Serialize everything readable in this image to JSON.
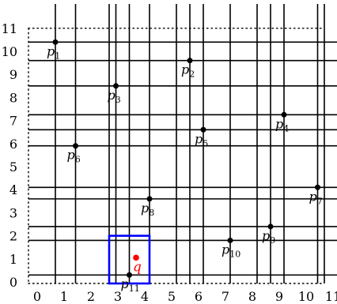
{
  "chart_data": {
    "type": "scatter",
    "xlim": [
      0,
      11
    ],
    "ylim": [
      0,
      11
    ],
    "x_ticks": [
      "0",
      "1",
      "2",
      "3",
      "4",
      "5",
      "6",
      "7",
      "8",
      "9",
      "10",
      "11"
    ],
    "y_ticks": [
      "0",
      "1",
      "2",
      "3",
      "4",
      "5",
      "6",
      "7",
      "8",
      "9",
      "10",
      "11"
    ],
    "points": [
      {
        "label": "p",
        "sub": "1",
        "x": 1.0,
        "y": 10.4
      },
      {
        "label": "p",
        "sub": "2",
        "x": 6.0,
        "y": 9.6
      },
      {
        "label": "p",
        "sub": "3",
        "x": 3.25,
        "y": 8.5
      },
      {
        "label": "p",
        "sub": "4",
        "x": 9.5,
        "y": 7.25
      },
      {
        "label": "p",
        "sub": "5",
        "x": 6.5,
        "y": 6.6
      },
      {
        "label": "p",
        "sub": "6",
        "x": 1.75,
        "y": 5.9
      },
      {
        "label": "p",
        "sub": "7",
        "x": 10.75,
        "y": 4.1
      },
      {
        "label": "p",
        "sub": "8",
        "x": 4.5,
        "y": 3.6
      },
      {
        "label": "p",
        "sub": "9",
        "x": 9.0,
        "y": 2.4
      },
      {
        "label": "p",
        "sub": "10",
        "x": 7.5,
        "y": 1.8
      },
      {
        "label": "p",
        "sub": "11",
        "x": 3.75,
        "y": 0.3
      }
    ],
    "query": {
      "label": "q",
      "x": 4.0,
      "y": 1.05,
      "color": "#ff0000"
    },
    "query_box": {
      "x": [
        3.0,
        4.5
      ],
      "y": [
        0.0,
        2.0
      ],
      "color": "#0000ff"
    },
    "grid_lines_x": [
      1.0,
      1.75,
      3.0,
      3.25,
      3.75,
      4.5,
      5.5,
      6.0,
      6.5,
      7.5,
      8.5,
      9.0,
      9.5,
      10.75,
      11.0
    ],
    "grid_lines_y": [
      0.3,
      1.8,
      2.4,
      3.6,
      4.1,
      5.9,
      6.6,
      7.25,
      8.5,
      9.6,
      10.4
    ]
  }
}
